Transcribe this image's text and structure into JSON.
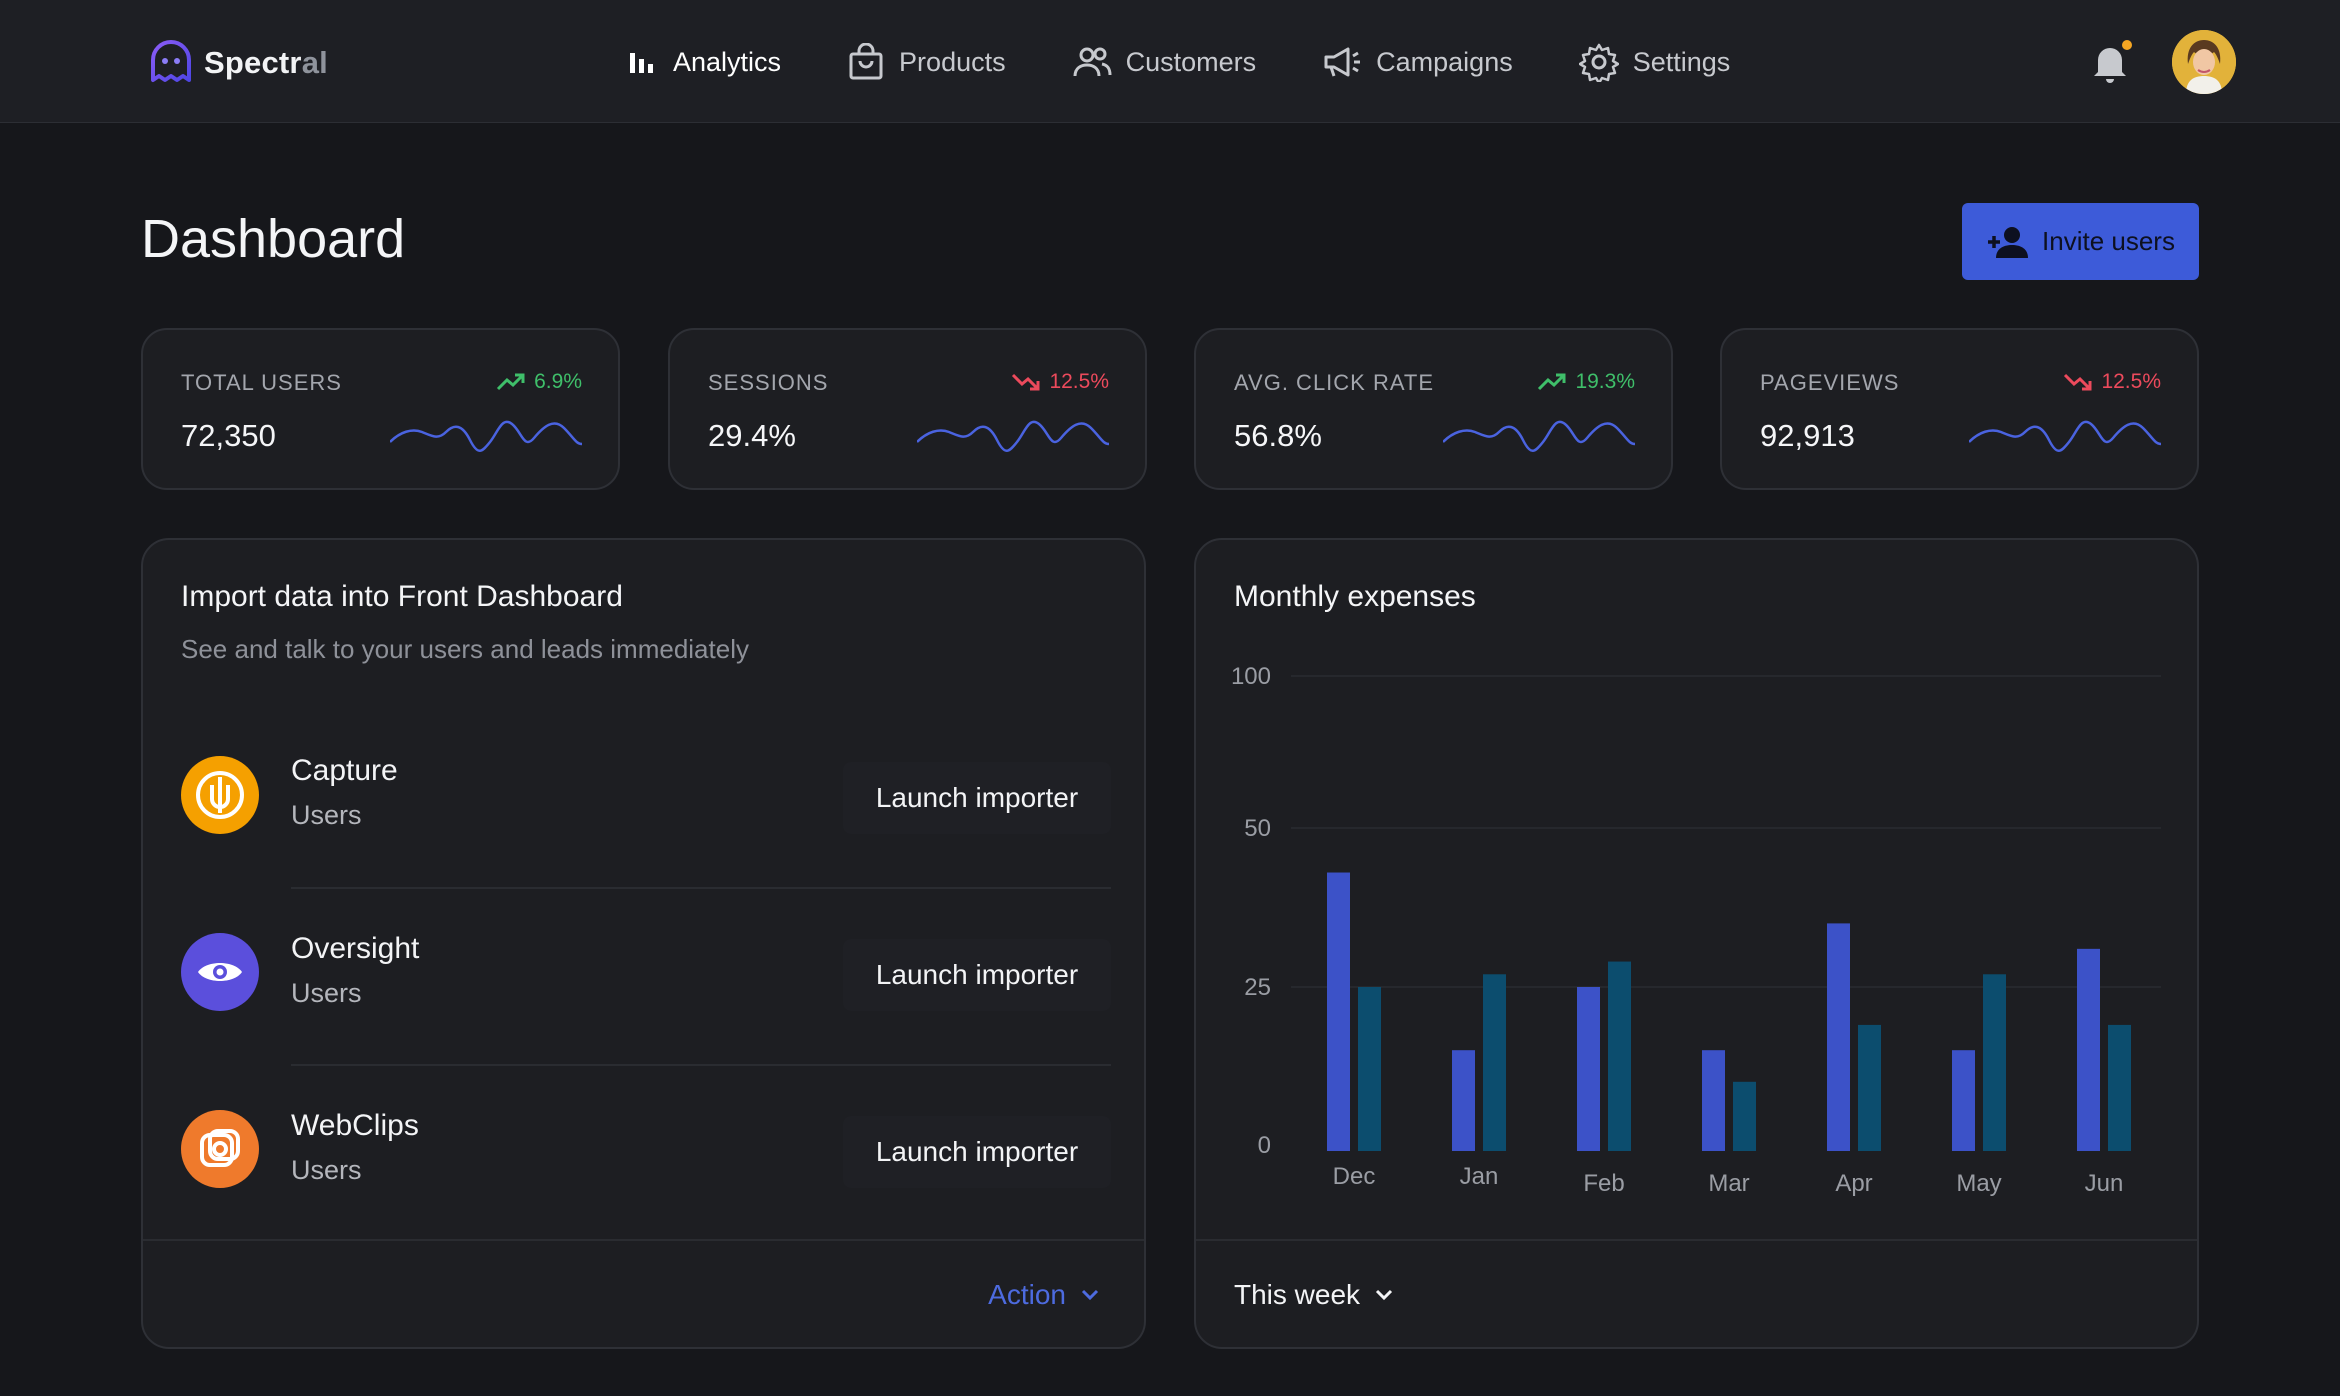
{
  "brand": {
    "name_main": "Spectr",
    "name_dim": "al"
  },
  "nav": {
    "items": [
      {
        "label": "Analytics",
        "icon": "bar-chart-icon",
        "active": true
      },
      {
        "label": "Products",
        "icon": "shopping-bag-icon",
        "active": false
      },
      {
        "label": "Customers",
        "icon": "users-icon",
        "active": false
      },
      {
        "label": "Campaigns",
        "icon": "megaphone-icon",
        "active": false
      },
      {
        "label": "Settings",
        "icon": "gear-icon",
        "active": false
      }
    ]
  },
  "header": {
    "title": "Dashboard",
    "invite_label": "Invite users"
  },
  "stats": [
    {
      "label": "TOTAL USERS",
      "value": "72,350",
      "trend": "6.9%",
      "direction": "up"
    },
    {
      "label": "SESSIONS",
      "value": "29.4%",
      "trend": "12.5%",
      "direction": "down"
    },
    {
      "label": "AVG. CLICK RATE",
      "value": "56.8%",
      "trend": "19.3%",
      "direction": "up"
    },
    {
      "label": "PAGEVIEWS",
      "value": "92,913",
      "trend": "12.5%",
      "direction": "down"
    }
  ],
  "import": {
    "title": "Import data into Front Dashboard",
    "subtitle": "See and talk to your users and leads immediately",
    "rows": [
      {
        "name": "Capture",
        "type": "Users",
        "action": "Launch importer",
        "color": "#f5a000"
      },
      {
        "name": "Oversight",
        "type": "Users",
        "action": "Launch importer",
        "color": "#5b4fdc"
      },
      {
        "name": "WebClips",
        "type": "Users",
        "action": "Launch importer",
        "color": "#ef7a2c"
      }
    ],
    "footer_action": "Action"
  },
  "expenses": {
    "title": "Monthly expenses",
    "range_label": "This week"
  },
  "colors": {
    "accent": "#3d5bd9",
    "series_a": "#3c52c8",
    "series_b": "#0c4d6e",
    "up": "#3fbf6a",
    "down": "#ec4a5c",
    "sparkline": "#4a63e0"
  },
  "chart_data": {
    "type": "bar",
    "title": "Monthly expenses",
    "categories": [
      "Dec",
      "Jan",
      "Feb",
      "Mar",
      "Apr",
      "May",
      "Jun"
    ],
    "y_ticks": [
      0,
      25,
      50,
      100
    ],
    "series": [
      {
        "values": [
          43,
          15,
          25,
          15,
          35,
          15,
          31
        ]
      },
      {
        "values": [
          25,
          27,
          29,
          10,
          19,
          27,
          19
        ]
      }
    ],
    "grid": true
  }
}
